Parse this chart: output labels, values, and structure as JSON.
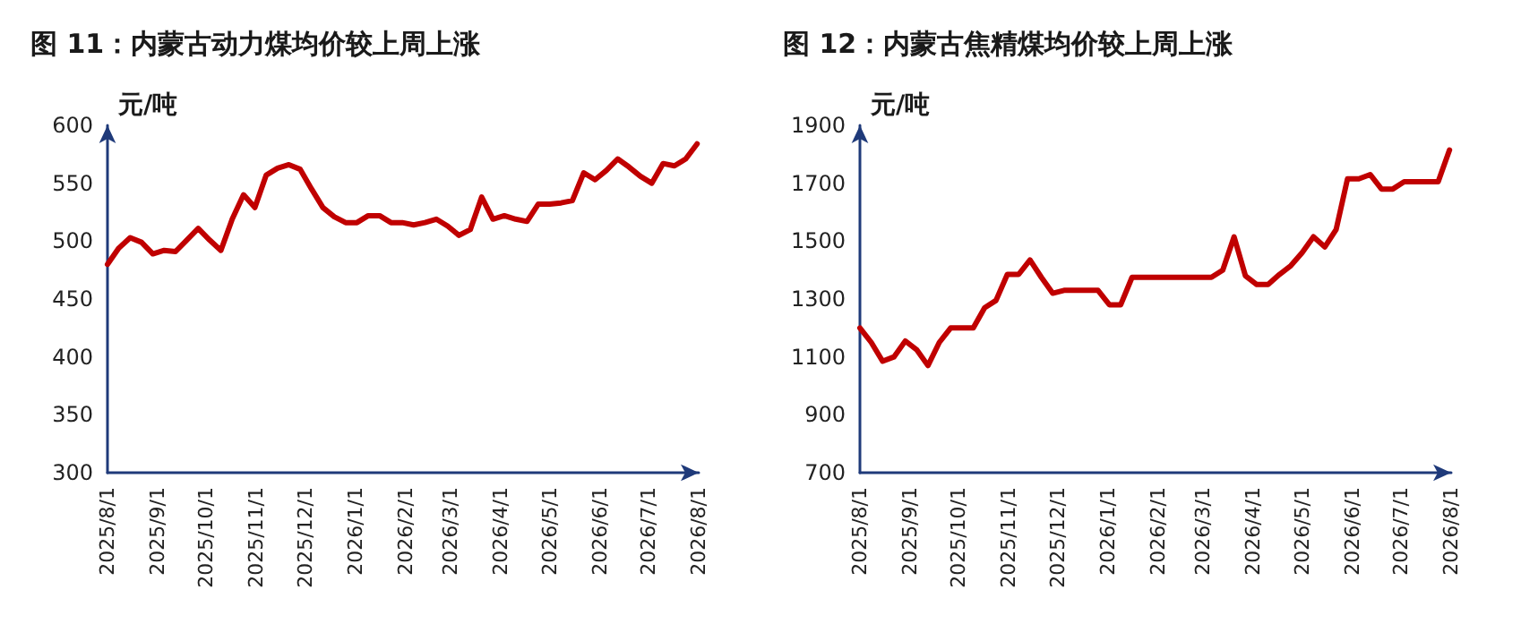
{
  "chart_data": [
    {
      "type": "line",
      "title": "图 11：内蒙古动力煤均价较上周上涨",
      "ylabel": "元/吨",
      "marker": "none",
      "line_style": "solid",
      "x": [
        "2025-08-01",
        "2025-08-08",
        "2025-08-15",
        "2025-08-22",
        "2025-08-29",
        "2025-09-05",
        "2025-09-12",
        "2025-09-19",
        "2025-09-26",
        "2025-10-03",
        "2025-10-10",
        "2025-10-17",
        "2025-10-24",
        "2025-10-31",
        "2025-11-07",
        "2025-11-14",
        "2025-11-21",
        "2025-11-28",
        "2025-12-05",
        "2025-12-12",
        "2025-12-19",
        "2025-12-26",
        "2026-01-02",
        "2026-01-09",
        "2026-01-16",
        "2026-01-23",
        "2026-01-30",
        "2026-02-06",
        "2026-02-13",
        "2026-02-20",
        "2026-02-27",
        "2026-03-06",
        "2026-03-13",
        "2026-03-20",
        "2026-03-27",
        "2026-04-03",
        "2026-04-10",
        "2026-04-17",
        "2026-04-24",
        "2026-05-01",
        "2026-05-08",
        "2026-05-15",
        "2026-05-22",
        "2026-05-29",
        "2026-06-05",
        "2026-06-12",
        "2026-06-19",
        "2026-06-26",
        "2026-07-03",
        "2026-07-10",
        "2026-07-17",
        "2026-07-24",
        "2026-07-31"
      ],
      "series": [
        {
          "color": "#c00000",
          "values": [
            480,
            494,
            503,
            499,
            489,
            492,
            491,
            501,
            511,
            501,
            492,
            519,
            540,
            529,
            557,
            563,
            566,
            562,
            545,
            529,
            521,
            516,
            516,
            522,
            522,
            516,
            516,
            514,
            516,
            519,
            513,
            505,
            510,
            538,
            519,
            522,
            519,
            517,
            532,
            532,
            533,
            535,
            559,
            553,
            561,
            571,
            564,
            556,
            550,
            567,
            565,
            571,
            584
          ]
        }
      ],
      "xlim": [
        "2025-08-01",
        "2026-08-01"
      ],
      "xticks": [
        {
          "value": "2025-08-01",
          "label": "2025/8/1"
        },
        {
          "value": "2025-09-01",
          "label": "2025/9/1"
        },
        {
          "value": "2025-10-01",
          "label": "2025/10/1"
        },
        {
          "value": "2025-11-01",
          "label": "2025/11/1"
        },
        {
          "value": "2025-12-01",
          "label": "2025/12/1"
        },
        {
          "value": "2026-01-01",
          "label": "2026/1/1"
        },
        {
          "value": "2026-02-01",
          "label": "2026/2/1"
        },
        {
          "value": "2026-03-01",
          "label": "2026/3/1"
        },
        {
          "value": "2026-04-01",
          "label": "2026/4/1"
        },
        {
          "value": "2026-05-01",
          "label": "2026/5/1"
        },
        {
          "value": "2026-06-01",
          "label": "2026/6/1"
        },
        {
          "value": "2026-07-01",
          "label": "2026/7/1"
        },
        {
          "value": "2026-08-01",
          "label": "2026/8/1"
        }
      ],
      "ylim": [
        300,
        600
      ],
      "yticks": [
        300,
        350,
        400,
        450,
        500,
        550,
        600
      ]
    },
    {
      "type": "line",
      "title": "图 12：内蒙古焦精煤均价较上周上涨",
      "ylabel": "元/吨",
      "marker": "none",
      "line_style": "solid",
      "x": [
        "2025-08-01",
        "2025-08-08",
        "2025-08-15",
        "2025-08-22",
        "2025-08-29",
        "2025-09-05",
        "2025-09-12",
        "2025-09-19",
        "2025-09-26",
        "2025-10-03",
        "2025-10-10",
        "2025-10-17",
        "2025-10-24",
        "2025-10-31",
        "2025-11-07",
        "2025-11-14",
        "2025-11-21",
        "2025-11-28",
        "2025-12-05",
        "2025-12-12",
        "2025-12-19",
        "2025-12-26",
        "2026-01-02",
        "2026-01-09",
        "2026-01-16",
        "2026-01-23",
        "2026-01-30",
        "2026-02-06",
        "2026-02-13",
        "2026-02-20",
        "2026-02-27",
        "2026-03-06",
        "2026-03-13",
        "2026-03-20",
        "2026-03-27",
        "2026-04-03",
        "2026-04-10",
        "2026-04-17",
        "2026-04-24",
        "2026-05-01",
        "2026-05-08",
        "2026-05-15",
        "2026-05-22",
        "2026-05-29",
        "2026-06-05",
        "2026-06-12",
        "2026-06-19",
        "2026-06-26",
        "2026-07-03",
        "2026-07-10",
        "2026-07-17",
        "2026-07-24",
        "2026-07-31"
      ],
      "series": [
        {
          "color": "#c00000",
          "values": [
            1200,
            1150,
            1085,
            1100,
            1155,
            1125,
            1070,
            1150,
            1200,
            1200,
            1200,
            1270,
            1295,
            1385,
            1385,
            1435,
            1375,
            1320,
            1330,
            1330,
            1330,
            1330,
            1280,
            1280,
            1375,
            1375,
            1375,
            1375,
            1375,
            1375,
            1375,
            1375,
            1400,
            1515,
            1380,
            1350,
            1350,
            1385,
            1415,
            1460,
            1515,
            1480,
            1540,
            1715,
            1715,
            1730,
            1680,
            1680,
            1705,
            1705,
            1705,
            1705,
            1815
          ]
        }
      ],
      "xlim": [
        "2025-08-01",
        "2026-08-01"
      ],
      "xticks": [
        {
          "value": "2025-08-01",
          "label": "2025/8/1"
        },
        {
          "value": "2025-09-01",
          "label": "2025/9/1"
        },
        {
          "value": "2025-10-01",
          "label": "2025/10/1"
        },
        {
          "value": "2025-11-01",
          "label": "2025/11/1"
        },
        {
          "value": "2025-12-01",
          "label": "2025/12/1"
        },
        {
          "value": "2026-01-01",
          "label": "2026/1/1"
        },
        {
          "value": "2026-02-01",
          "label": "2026/2/1"
        },
        {
          "value": "2026-03-01",
          "label": "2026/3/1"
        },
        {
          "value": "2026-04-01",
          "label": "2026/4/1"
        },
        {
          "value": "2026-05-01",
          "label": "2026/5/1"
        },
        {
          "value": "2026-06-01",
          "label": "2026/6/1"
        },
        {
          "value": "2026-07-01",
          "label": "2026/7/1"
        },
        {
          "value": "2026-08-01",
          "label": "2026/8/1"
        }
      ],
      "ylim": [
        700,
        1900
      ],
      "yticks": [
        700,
        900,
        1100,
        1300,
        1500,
        1700,
        1900
      ]
    }
  ]
}
